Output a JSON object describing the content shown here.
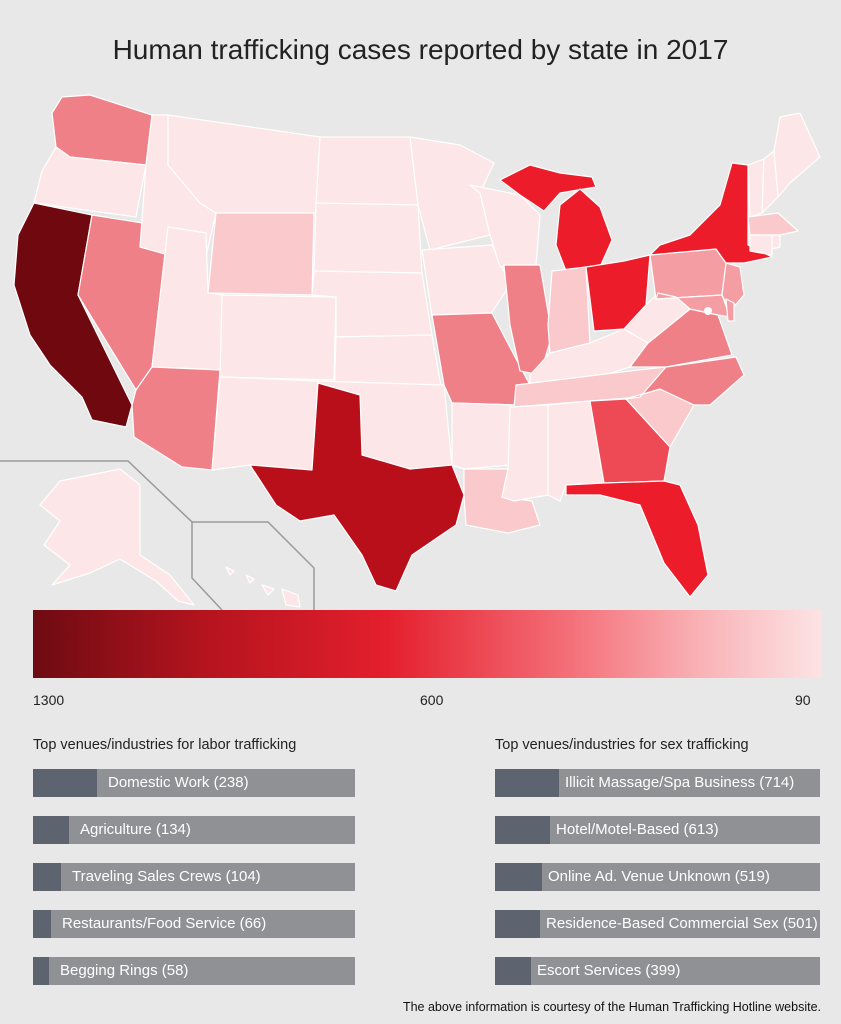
{
  "title": "Human trafficking cases reported by state in 2017",
  "legend": {
    "ticks": [
      "1300",
      "600",
      "90"
    ],
    "max": 1300,
    "mid": 600,
    "min": 90,
    "colors": [
      "#6e0b12",
      "#e41f2d",
      "#fde3e4"
    ]
  },
  "labor": {
    "heading": "Top venues/industries for labor trafficking",
    "max": 238,
    "items": [
      {
        "label": "Domestic Work (238)",
        "value": 238
      },
      {
        "label": "Agriculture (134)",
        "value": 134
      },
      {
        "label": "Traveling Sales Crews (104)",
        "value": 104
      },
      {
        "label": "Restaurants/Food Service (66)",
        "value": 66
      },
      {
        "label": "Begging Rings (58)",
        "value": 58
      }
    ]
  },
  "sex": {
    "heading": "Top venues/industries for sex trafficking",
    "max": 714,
    "items": [
      {
        "label": "Illicit Massage/Spa Business (714)",
        "value": 714
      },
      {
        "label": "Hotel/Motel-Based (613)",
        "value": 613
      },
      {
        "label": "Online Ad. Venue Unknown (519)",
        "value": 519
      },
      {
        "label": "Residence-Based Commercial Sex (501)",
        "value": 501
      },
      {
        "label": "Escort Services (399)",
        "value": 399
      }
    ]
  },
  "footer": "The above information is courtesy of the Human Trafficking Hotline website.",
  "map_colors": {
    "very_light": "#fde6e7",
    "light": "#f9c9cc",
    "medium_light": "#f49da3",
    "medium": "#f08087",
    "medium_dark": "#ee4a55",
    "bright": "#ed1c2b",
    "dark": "#b90f1b",
    "darkest": "#700810",
    "outline": "#ffffff"
  }
}
